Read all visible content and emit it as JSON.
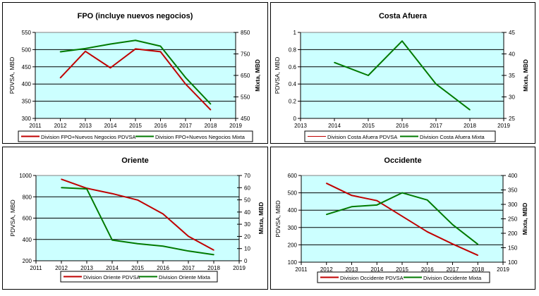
{
  "chart_data": [
    {
      "type": "line",
      "title": "FPO (incluye nuevos negocios)",
      "ylabel": "PDVSA, MBD",
      "y2label": "Mixta, MBD",
      "xlim": [
        2011,
        2019
      ],
      "xticks": [
        2011,
        2012,
        2013,
        2014,
        2015,
        2016,
        2017,
        2018,
        2019
      ],
      "ylim": [
        300,
        550
      ],
      "yticks": [
        300,
        350,
        400,
        450,
        500,
        550
      ],
      "y2lim": [
        450,
        850
      ],
      "y2ticks": [
        450,
        550,
        650,
        750,
        850
      ],
      "grid": true,
      "legend": "bottom",
      "series": [
        {
          "name": "Division FPO+Nuevos Negocios PDVSA",
          "axis": "left",
          "color": "#c00000",
          "x": [
            2012,
            2013,
            2014,
            2015,
            2016,
            2017,
            2018
          ],
          "values": [
            418,
            495,
            447,
            502,
            494,
            400,
            325
          ]
        },
        {
          "name": "Division FPO+Nuevos Negocios Mixta",
          "axis": "right",
          "color": "#007a00",
          "x": [
            2012,
            2013,
            2014,
            2015,
            2016,
            2017,
            2018
          ],
          "values": [
            760,
            775,
            796,
            813,
            786,
            640,
            517
          ]
        }
      ]
    },
    {
      "type": "line",
      "title": "Costa Afuera",
      "ylabel": "PDVSA, MBD",
      "y2label": "Mixta, MBD",
      "xlim": [
        2013,
        2019
      ],
      "xticks": [
        2013,
        2014,
        2015,
        2016,
        2017,
        2018,
        2019
      ],
      "ylim": [
        0,
        1
      ],
      "yticks": [
        0,
        0.2,
        0.4,
        0.6,
        0.8,
        1
      ],
      "y2lim": [
        25,
        45
      ],
      "y2ticks": [
        25,
        30,
        35,
        40,
        45
      ],
      "grid": true,
      "legend": "bottom",
      "series": [
        {
          "name": "Division Costa Afuera PDVSA",
          "axis": "left",
          "color": "#c00000",
          "thin": true,
          "x": [],
          "values": []
        },
        {
          "name": "Division Costa Afuera Mixta",
          "axis": "right",
          "color": "#007a00",
          "x": [
            2014,
            2015,
            2016,
            2017,
            2018
          ],
          "values": [
            38,
            35,
            43,
            33,
            27
          ]
        }
      ]
    },
    {
      "type": "line",
      "title": "Oriente",
      "ylabel": "PDVSA, MBD",
      "y2label": "Mixta, MBD",
      "xlim": [
        2011,
        2019
      ],
      "xticks": [
        2011,
        2012,
        2013,
        2014,
        2015,
        2016,
        2017,
        2018,
        2019
      ],
      "ylim": [
        200,
        1000
      ],
      "yticks": [
        200,
        400,
        600,
        800,
        1000
      ],
      "y2lim": [
        0,
        70
      ],
      "y2ticks": [
        0,
        10,
        20,
        30,
        40,
        50,
        60,
        70
      ],
      "grid": true,
      "legend": "bottom",
      "series": [
        {
          "name": "Division Oriente PDVSA",
          "axis": "left",
          "color": "#c00000",
          "x": [
            2012,
            2013,
            2014,
            2015,
            2016,
            2017,
            2018
          ],
          "values": [
            965,
            880,
            830,
            770,
            640,
            430,
            300
          ]
        },
        {
          "name": "Division Oriente Mixta",
          "axis": "right",
          "color": "#007a00",
          "x": [
            2012,
            2013,
            2014,
            2015,
            2016,
            2017,
            2018
          ],
          "values": [
            60,
            59,
            17,
            14,
            12,
            8,
            5
          ]
        }
      ]
    },
    {
      "type": "line",
      "title": "Occidente",
      "ylabel": "PDVSA, MBD",
      "y2label": "Mixta, MBD",
      "xlim": [
        2011,
        2019
      ],
      "xticks": [
        2011,
        2012,
        2013,
        2014,
        2015,
        2016,
        2017,
        2018,
        2019
      ],
      "ylim": [
        100,
        600
      ],
      "yticks": [
        100,
        200,
        300,
        400,
        500,
        600
      ],
      "y2lim": [
        100,
        400
      ],
      "y2ticks": [
        100,
        150,
        200,
        250,
        300,
        350,
        400
      ],
      "grid": true,
      "legend": "bottom",
      "series": [
        {
          "name": "Division Occidente PDVSA",
          "axis": "left",
          "color": "#c00000",
          "x": [
            2012,
            2013,
            2014,
            2015,
            2016,
            2017,
            2018
          ],
          "values": [
            555,
            485,
            455,
            365,
            275,
            205,
            140
          ]
        },
        {
          "name": "Division Occidente Mixta",
          "axis": "right",
          "color": "#007a00",
          "x": [
            2012,
            2013,
            2014,
            2015,
            2016,
            2017,
            2018
          ],
          "values": [
            265,
            292,
            298,
            340,
            315,
            230,
            162
          ]
        }
      ]
    }
  ]
}
